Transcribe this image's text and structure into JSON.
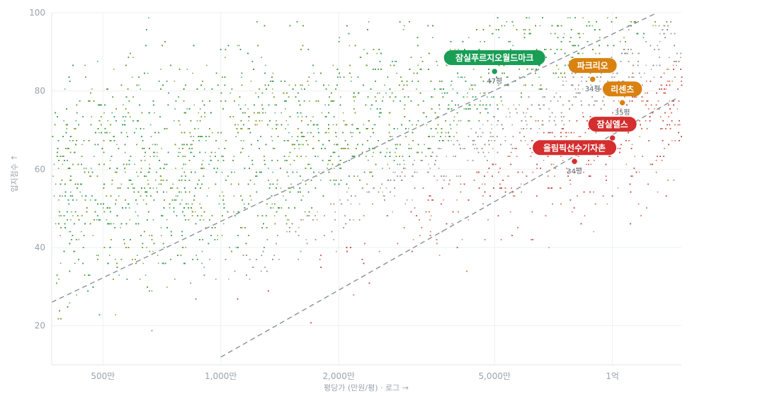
{
  "chart_data": {
    "type": "scatter",
    "x_scale": "log",
    "xlabel": "평당가 (만원/평) · 로그 →",
    "ylabel": "입지점수 ↑",
    "xlim": [
      370,
      15000
    ],
    "ylim": [
      10,
      100
    ],
    "x_ticks": [
      {
        "value": 500,
        "label": "500만"
      },
      {
        "value": 1000,
        "label": "1,000만"
      },
      {
        "value": 2000,
        "label": "2,000만"
      },
      {
        "value": 5000,
        "label": "5,000만"
      },
      {
        "value": 10000,
        "label": "1억"
      }
    ],
    "y_ticks": [
      {
        "value": 20,
        "label": "20"
      },
      {
        "value": 40,
        "label": "40"
      },
      {
        "value": 60,
        "label": "60"
      },
      {
        "value": 80,
        "label": "80"
      },
      {
        "value": 100,
        "label": "100"
      }
    ],
    "grid": true,
    "reference_lines": [
      {
        "x": [
          370,
          13000
        ],
        "y": [
          26,
          100
        ]
      },
      {
        "x": [
          1000,
          14500
        ],
        "y": [
          12,
          78
        ]
      }
    ],
    "colors": {
      "green": "#1a9e55",
      "orange": "#d9820f",
      "red": "#d42e2e",
      "gray": "#8a9099"
    },
    "annotations": [
      {
        "label": "잠실푸르지오월드마크",
        "sub": "47평",
        "x": 5000,
        "y": 85,
        "color": "#1a9e55"
      },
      {
        "label": "파크리오",
        "sub": "34평",
        "x": 8900,
        "y": 83,
        "color": "#d9820f"
      },
      {
        "label": "리센츠",
        "sub": "35평",
        "x": 10600,
        "y": 77,
        "color": "#d9820f"
      },
      {
        "label": "잠실엘스",
        "sub": "",
        "x": 10000,
        "y": 68,
        "color": "#d42e2e"
      },
      {
        "label": "올림픽선수기자촌",
        "sub": "34평",
        "x": 8000,
        "y": 62,
        "color": "#d42e2e"
      }
    ]
  }
}
